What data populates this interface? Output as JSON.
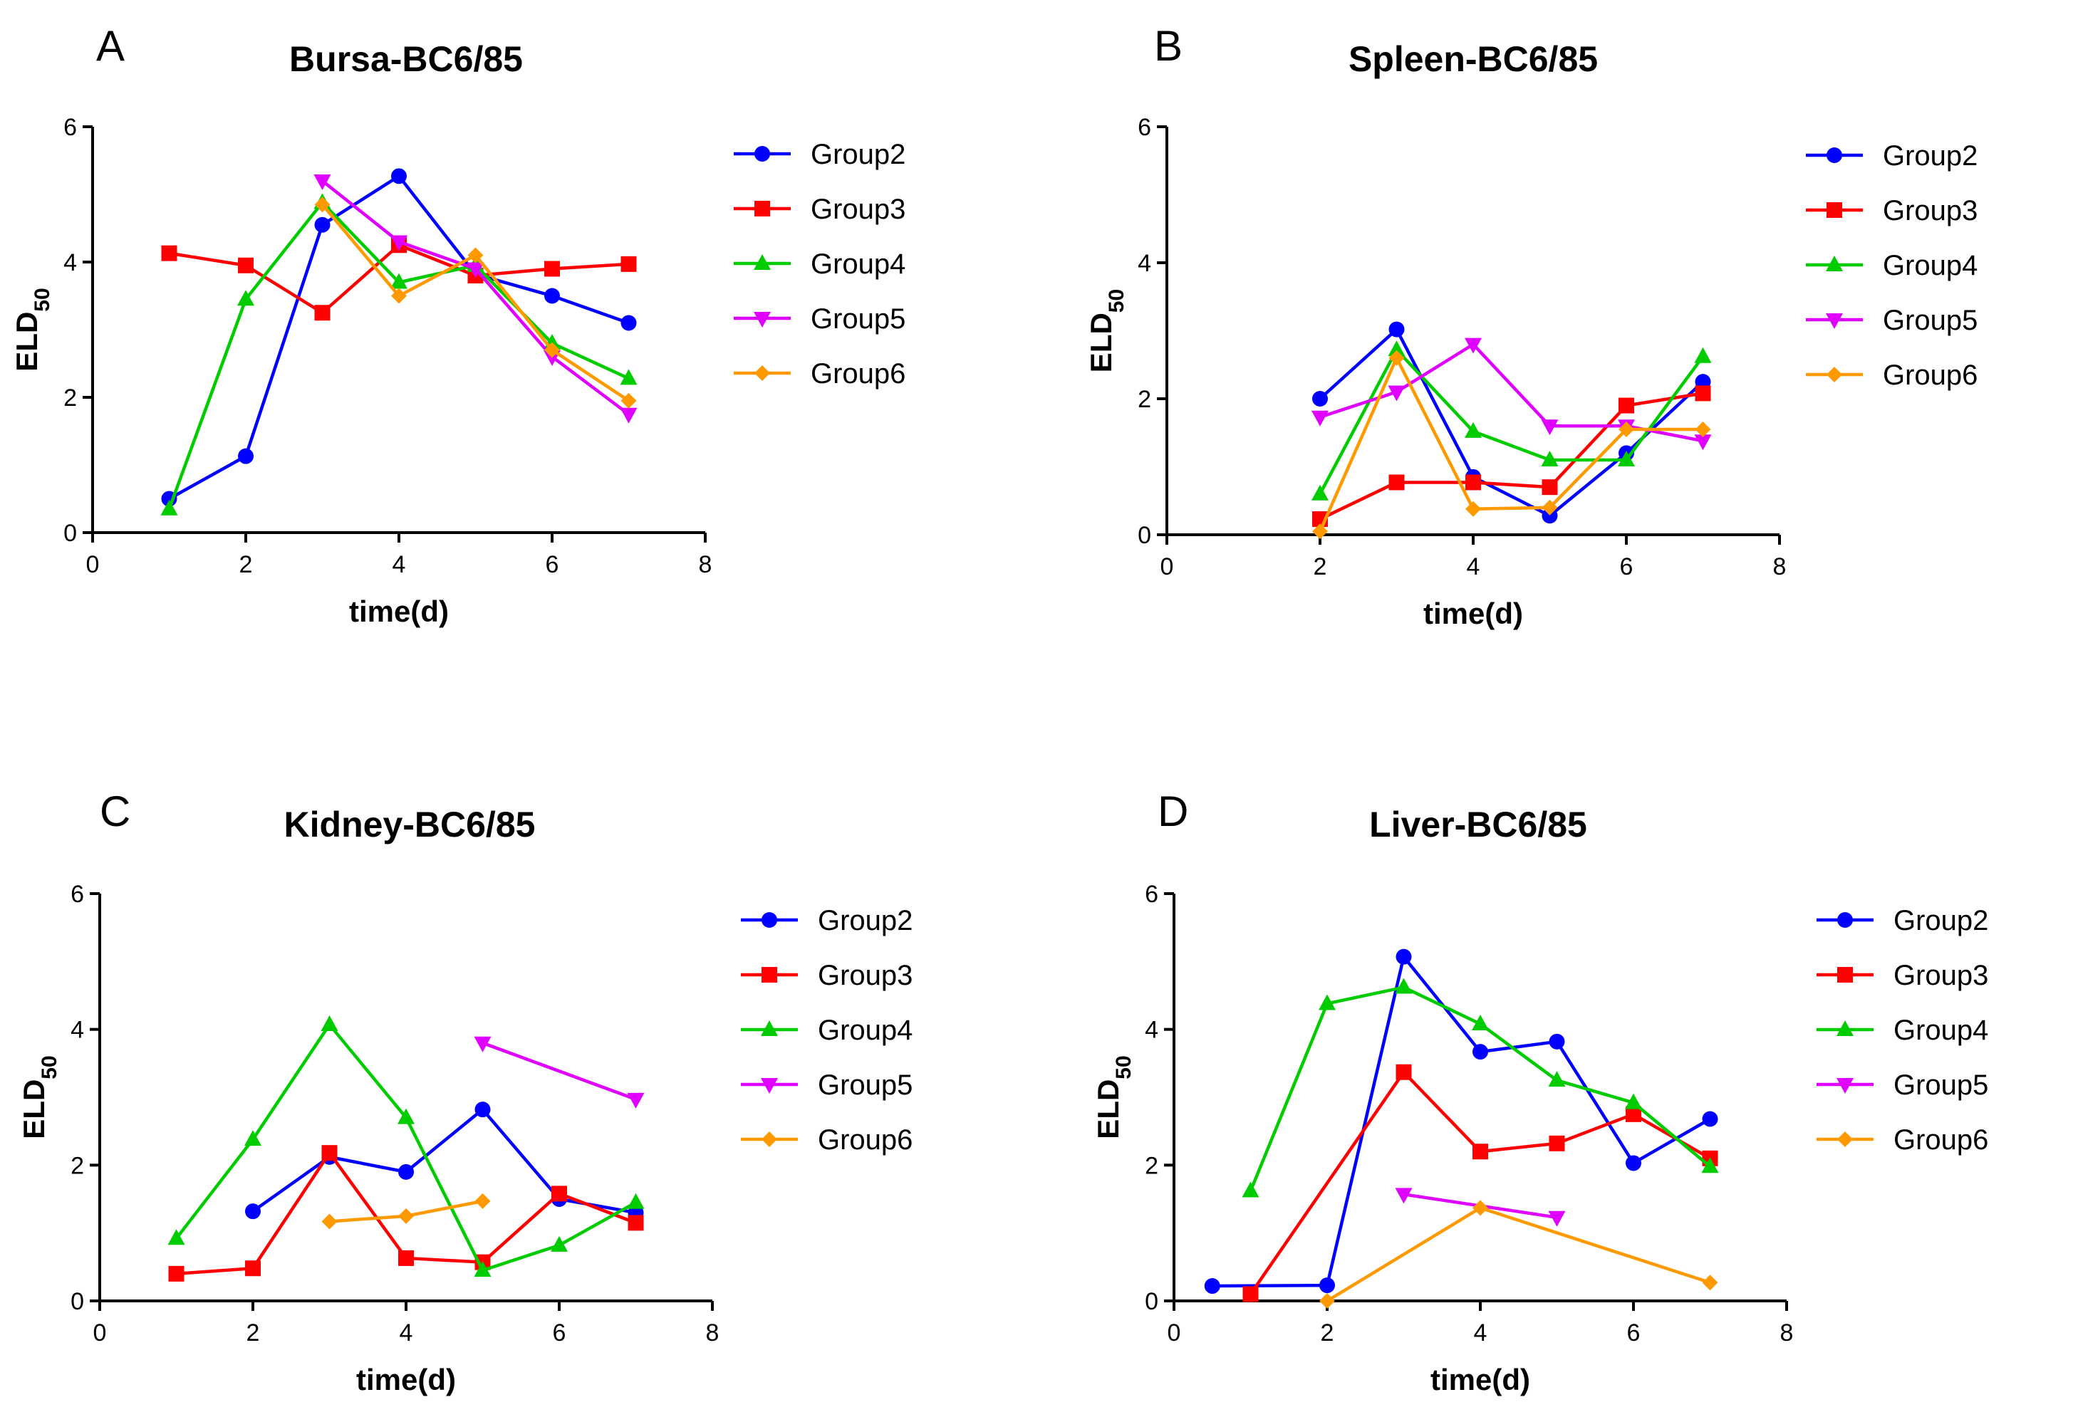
{
  "colors": {
    "Group2": "#0000ff",
    "Group3": "#ff0000",
    "Group4": "#00cc00",
    "Group5": "#e000ff",
    "Group6": "#ff9900"
  },
  "markers": {
    "Group2": "circle",
    "Group3": "square",
    "Group4": "triangle-up",
    "Group5": "triangle-down",
    "Group6": "diamond"
  },
  "chart_data": [
    {
      "panel": "A",
      "type": "line",
      "title": "Bursa-BC6/85",
      "xlabel": "time(d)",
      "ylabel": "ELD",
      "ylabel_sub": "50",
      "xlim": [
        0,
        8
      ],
      "ylim": [
        0,
        6
      ],
      "xticks": [
        "0",
        "2",
        "4",
        "6",
        "8"
      ],
      "yticks": [
        "0",
        "2",
        "4",
        "6"
      ],
      "legend": [
        "Group2",
        "Group3",
        "Group4",
        "Group5",
        "Group6"
      ],
      "series": [
        {
          "name": "Group2",
          "points": [
            [
              1,
              0.5
            ],
            [
              2,
              1.13
            ],
            [
              3,
              4.55
            ],
            [
              4,
              5.27
            ],
            [
              5,
              3.82
            ],
            [
              6,
              3.5
            ],
            [
              7,
              3.1
            ]
          ]
        },
        {
          "name": "Group3",
          "points": [
            [
              1,
              4.13
            ],
            [
              2,
              3.95
            ],
            [
              3,
              3.25
            ],
            [
              4,
              4.25
            ],
            [
              5,
              3.8
            ],
            [
              6,
              3.9
            ],
            [
              7,
              3.97
            ]
          ]
        },
        {
          "name": "Group4",
          "points": [
            [
              1,
              0.35
            ],
            [
              2,
              3.45
            ],
            [
              3,
              4.88
            ],
            [
              4,
              3.7
            ],
            [
              5,
              3.95
            ],
            [
              6,
              2.8
            ],
            [
              7,
              2.28
            ]
          ]
        },
        {
          "name": "Group5",
          "points": [
            [
              3,
              5.2
            ],
            [
              4,
              4.3
            ],
            [
              5,
              3.9
            ],
            [
              6,
              2.6
            ],
            [
              7,
              1.75
            ]
          ]
        },
        {
          "name": "Group6",
          "points": [
            [
              3,
              4.85
            ],
            [
              4,
              3.5
            ],
            [
              5,
              4.1
            ],
            [
              6,
              2.7
            ],
            [
              7,
              1.95
            ]
          ]
        }
      ]
    },
    {
      "panel": "B",
      "type": "line",
      "title": "Spleen-BC6/85",
      "xlabel": "time(d)",
      "ylabel": "ELD",
      "ylabel_sub": "50",
      "xlim": [
        0,
        8
      ],
      "ylim": [
        0,
        6
      ],
      "xticks": [
        "0",
        "2",
        "4",
        "6",
        "8"
      ],
      "yticks": [
        "0",
        "2",
        "4",
        "6"
      ],
      "legend": [
        "Group2",
        "Group3",
        "Group4",
        "Group5",
        "Group6"
      ],
      "series": [
        {
          "name": "Group2",
          "points": [
            [
              2,
              2.0
            ],
            [
              3,
              3.02
            ],
            [
              4,
              0.85
            ],
            [
              5,
              0.28
            ],
            [
              6,
              1.2
            ],
            [
              7,
              2.25
            ]
          ]
        },
        {
          "name": "Group3",
          "points": [
            [
              2,
              0.23
            ],
            [
              3,
              0.77
            ],
            [
              4,
              0.77
            ],
            [
              5,
              0.7
            ],
            [
              6,
              1.9
            ],
            [
              7,
              2.08
            ]
          ]
        },
        {
          "name": "Group4",
          "points": [
            [
              2,
              0.6
            ],
            [
              3,
              2.72
            ],
            [
              4,
              1.52
            ],
            [
              5,
              1.1
            ],
            [
              6,
              1.1
            ],
            [
              7,
              2.62
            ]
          ]
        },
        {
          "name": "Group5",
          "points": [
            [
              2,
              1.73
            ],
            [
              3,
              2.1
            ],
            [
              4,
              2.8
            ],
            [
              5,
              1.6
            ],
            [
              6,
              1.6
            ],
            [
              7,
              1.38
            ]
          ]
        },
        {
          "name": "Group6",
          "points": [
            [
              2,
              0.05
            ],
            [
              3,
              2.6
            ],
            [
              4,
              0.38
            ],
            [
              5,
              0.4
            ],
            [
              6,
              1.55
            ],
            [
              7,
              1.55
            ]
          ]
        }
      ]
    },
    {
      "panel": "C",
      "type": "line",
      "title": "Kidney-BC6/85",
      "xlabel": "time(d)",
      "ylabel": "ELD",
      "ylabel_sub": "50",
      "xlim": [
        0,
        8
      ],
      "ylim": [
        0,
        6
      ],
      "xticks": [
        "0",
        "2",
        "4",
        "6",
        "8"
      ],
      "yticks": [
        "0",
        "2",
        "4",
        "6"
      ],
      "legend": [
        "Group2",
        "Group3",
        "Group4",
        "Group5",
        "Group6"
      ],
      "series": [
        {
          "name": "Group2",
          "points": [
            [
              2,
              1.32
            ],
            [
              3,
              2.12
            ],
            [
              4,
              1.9
            ],
            [
              5,
              2.82
            ],
            [
              6,
              1.5
            ],
            [
              7,
              1.3
            ]
          ]
        },
        {
          "name": "Group3",
          "points": [
            [
              1,
              0.4
            ],
            [
              2,
              0.48
            ],
            [
              3,
              2.18
            ],
            [
              4,
              0.63
            ],
            [
              5,
              0.57
            ],
            [
              6,
              1.58
            ],
            [
              7,
              1.15
            ]
          ]
        },
        {
          "name": "Group4",
          "points": [
            [
              1,
              0.92
            ],
            [
              2,
              2.38
            ],
            [
              3,
              4.07
            ],
            [
              4,
              2.7
            ],
            [
              5,
              0.45
            ],
            [
              6,
              0.82
            ],
            [
              7,
              1.45
            ]
          ]
        },
        {
          "name": "Group5",
          "points": [
            [
              5,
              3.8
            ],
            [
              7,
              2.97
            ]
          ]
        },
        {
          "name": "Group6",
          "points": [
            [
              3,
              1.17
            ],
            [
              4,
              1.25
            ],
            [
              5,
              1.47
            ]
          ]
        }
      ]
    },
    {
      "panel": "D",
      "type": "line",
      "title": "Liver-BC6/85",
      "xlabel": "time(d)",
      "ylabel": "ELD",
      "ylabel_sub": "50",
      "xlim": [
        0,
        8
      ],
      "ylim": [
        0,
        6
      ],
      "xticks": [
        "0",
        "2",
        "4",
        "6",
        "8"
      ],
      "yticks": [
        "0",
        "2",
        "4",
        "6"
      ],
      "legend": [
        "Group2",
        "Group3",
        "Group4",
        "Group5",
        "Group6"
      ],
      "series": [
        {
          "name": "Group2",
          "points": [
            [
              0.5,
              0.22
            ],
            [
              2,
              0.23
            ],
            [
              3,
              5.07
            ],
            [
              4,
              3.67
            ],
            [
              5,
              3.82
            ],
            [
              6,
              2.03
            ],
            [
              7,
              2.68
            ]
          ]
        },
        {
          "name": "Group3",
          "points": [
            [
              1,
              0.1
            ],
            [
              3,
              3.37
            ],
            [
              4,
              2.2
            ],
            [
              5,
              2.32
            ],
            [
              6,
              2.75
            ],
            [
              7,
              2.1
            ]
          ]
        },
        {
          "name": "Group4",
          "points": [
            [
              1,
              1.62
            ],
            [
              2,
              4.38
            ],
            [
              3,
              4.62
            ],
            [
              4,
              4.08
            ],
            [
              5,
              3.25
            ],
            [
              6,
              2.92
            ],
            [
              7,
              1.98
            ]
          ]
        },
        {
          "name": "Group5",
          "points": [
            [
              3,
              1.57
            ],
            [
              5,
              1.23
            ]
          ]
        },
        {
          "name": "Group6",
          "points": [
            [
              2,
              0.0
            ],
            [
              4,
              1.37
            ],
            [
              7,
              0.27
            ]
          ]
        }
      ]
    }
  ]
}
